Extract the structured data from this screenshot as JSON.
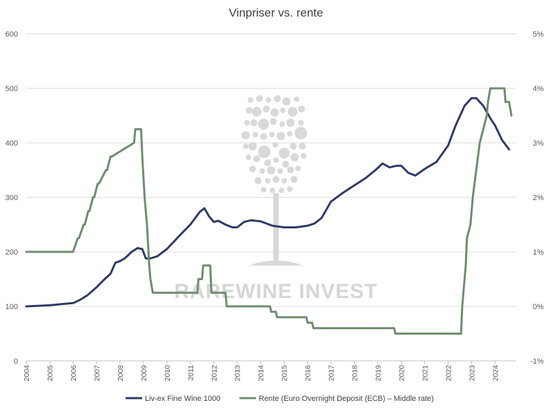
{
  "chart_data": {
    "type": "line",
    "title": "Vinpriser vs. rente",
    "xlabel": "",
    "ylabel": "",
    "y_left": {
      "min": 0,
      "max": 600,
      "ticks": [
        "0",
        "100",
        "200",
        "300",
        "400",
        "500",
        "600"
      ],
      "tick_values": [
        0,
        100,
        200,
        300,
        400,
        500,
        600
      ]
    },
    "y_right": {
      "min": -1,
      "max": 5,
      "ticks": [
        "-1%",
        "0%",
        "1%",
        "2%",
        "3%",
        "4%",
        "5%"
      ],
      "tick_values": [
        -1,
        0,
        1,
        2,
        3,
        4,
        5
      ]
    },
    "x_range": [
      2004.0,
      2024.9
    ],
    "x_ticks": [
      "2004",
      "2005",
      "2006",
      "2007",
      "2008",
      "2009",
      "2010",
      "2011",
      "2012",
      "2013",
      "2014",
      "2015",
      "2016",
      "2017",
      "2018",
      "2019",
      "2020",
      "2021",
      "2022",
      "2023",
      "2024"
    ],
    "x_tick_values": [
      2004,
      2005,
      2006,
      2007,
      2008,
      2009,
      2010,
      2011,
      2012,
      2013,
      2014,
      2015,
      2016,
      2017,
      2018,
      2019,
      2020,
      2021,
      2022,
      2023,
      2024
    ],
    "grid": true,
    "legend_position": "bottom",
    "watermark": "RAREWINE INVEST",
    "series": [
      {
        "name": "Liv-ex Fine Wine 1000",
        "axis": "left",
        "color": "#2e3a66",
        "x": [
          2004.0,
          2004.5,
          2005.0,
          2005.5,
          2006.0,
          2006.3,
          2006.6,
          2007.0,
          2007.3,
          2007.6,
          2007.8,
          2008.0,
          2008.2,
          2008.5,
          2008.75,
          2008.95,
          2009.1,
          2009.3,
          2009.6,
          2010.0,
          2010.5,
          2011.0,
          2011.4,
          2011.6,
          2011.8,
          2012.0,
          2012.2,
          2012.5,
          2012.8,
          2013.0,
          2013.3,
          2013.6,
          2014.0,
          2014.5,
          2015.0,
          2015.5,
          2016.0,
          2016.3,
          2016.6,
          2017.0,
          2017.5,
          2018.0,
          2018.5,
          2018.9,
          2019.2,
          2019.5,
          2019.8,
          2020.0,
          2020.3,
          2020.6,
          2021.0,
          2021.5,
          2022.0,
          2022.3,
          2022.7,
          2023.0,
          2023.2,
          2023.5,
          2023.8,
          2024.0,
          2024.3,
          2024.6
        ],
        "y": [
          100,
          101,
          102,
          104,
          106,
          112,
          120,
          135,
          148,
          160,
          180,
          183,
          188,
          200,
          207,
          205,
          188,
          188,
          192,
          205,
          228,
          250,
          273,
          280,
          265,
          255,
          257,
          250,
          245,
          245,
          255,
          258,
          256,
          248,
          245,
          245,
          248,
          252,
          262,
          292,
          308,
          322,
          336,
          350,
          362,
          355,
          358,
          358,
          345,
          340,
          352,
          365,
          395,
          430,
          468,
          482,
          482,
          468,
          445,
          432,
          405,
          388
        ]
      },
      {
        "name": "Rente (Euro Overnight Deposit (ECB) – Middle rate)",
        "axis": "right",
        "color": "#6e8c6e",
        "x": [
          2004.0,
          2005.95,
          2006.0,
          2006.2,
          2006.25,
          2006.45,
          2006.5,
          2006.65,
          2006.7,
          2006.85,
          2006.9,
          2007.05,
          2007.1,
          2007.4,
          2007.45,
          2007.6,
          2007.65,
          2008.6,
          2008.65,
          2008.9,
          2008.95,
          2009.05,
          2009.15,
          2009.25,
          2009.3,
          2009.4,
          2011.3,
          2011.35,
          2011.5,
          2011.55,
          2011.85,
          2011.9,
          2012.5,
          2012.55,
          2014.4,
          2014.45,
          2014.65,
          2014.7,
          2015.95,
          2016.0,
          2016.2,
          2016.25,
          2019.7,
          2019.75,
          2022.55,
          2022.6,
          2022.75,
          2022.8,
          2022.95,
          2023.05,
          2023.2,
          2023.35,
          2023.5,
          2023.65,
          2023.7,
          2023.8,
          2024.4,
          2024.45,
          2024.6,
          2024.7
        ],
        "y": [
          1.0,
          1.0,
          1.0,
          1.25,
          1.25,
          1.5,
          1.5,
          1.75,
          1.75,
          2.0,
          2.0,
          2.25,
          2.25,
          2.5,
          2.5,
          2.75,
          2.75,
          3.0,
          3.25,
          3.25,
          2.75,
          2.0,
          1.5,
          0.75,
          0.5,
          0.25,
          0.25,
          0.5,
          0.5,
          0.75,
          0.75,
          0.25,
          0.25,
          0.0,
          0.0,
          -0.1,
          -0.1,
          -0.2,
          -0.2,
          -0.3,
          -0.3,
          -0.4,
          -0.4,
          -0.5,
          -0.5,
          0.0,
          0.75,
          1.25,
          1.5,
          2.0,
          2.5,
          3.0,
          3.25,
          3.5,
          3.75,
          4.0,
          4.0,
          3.75,
          3.75,
          3.5
        ]
      }
    ]
  }
}
